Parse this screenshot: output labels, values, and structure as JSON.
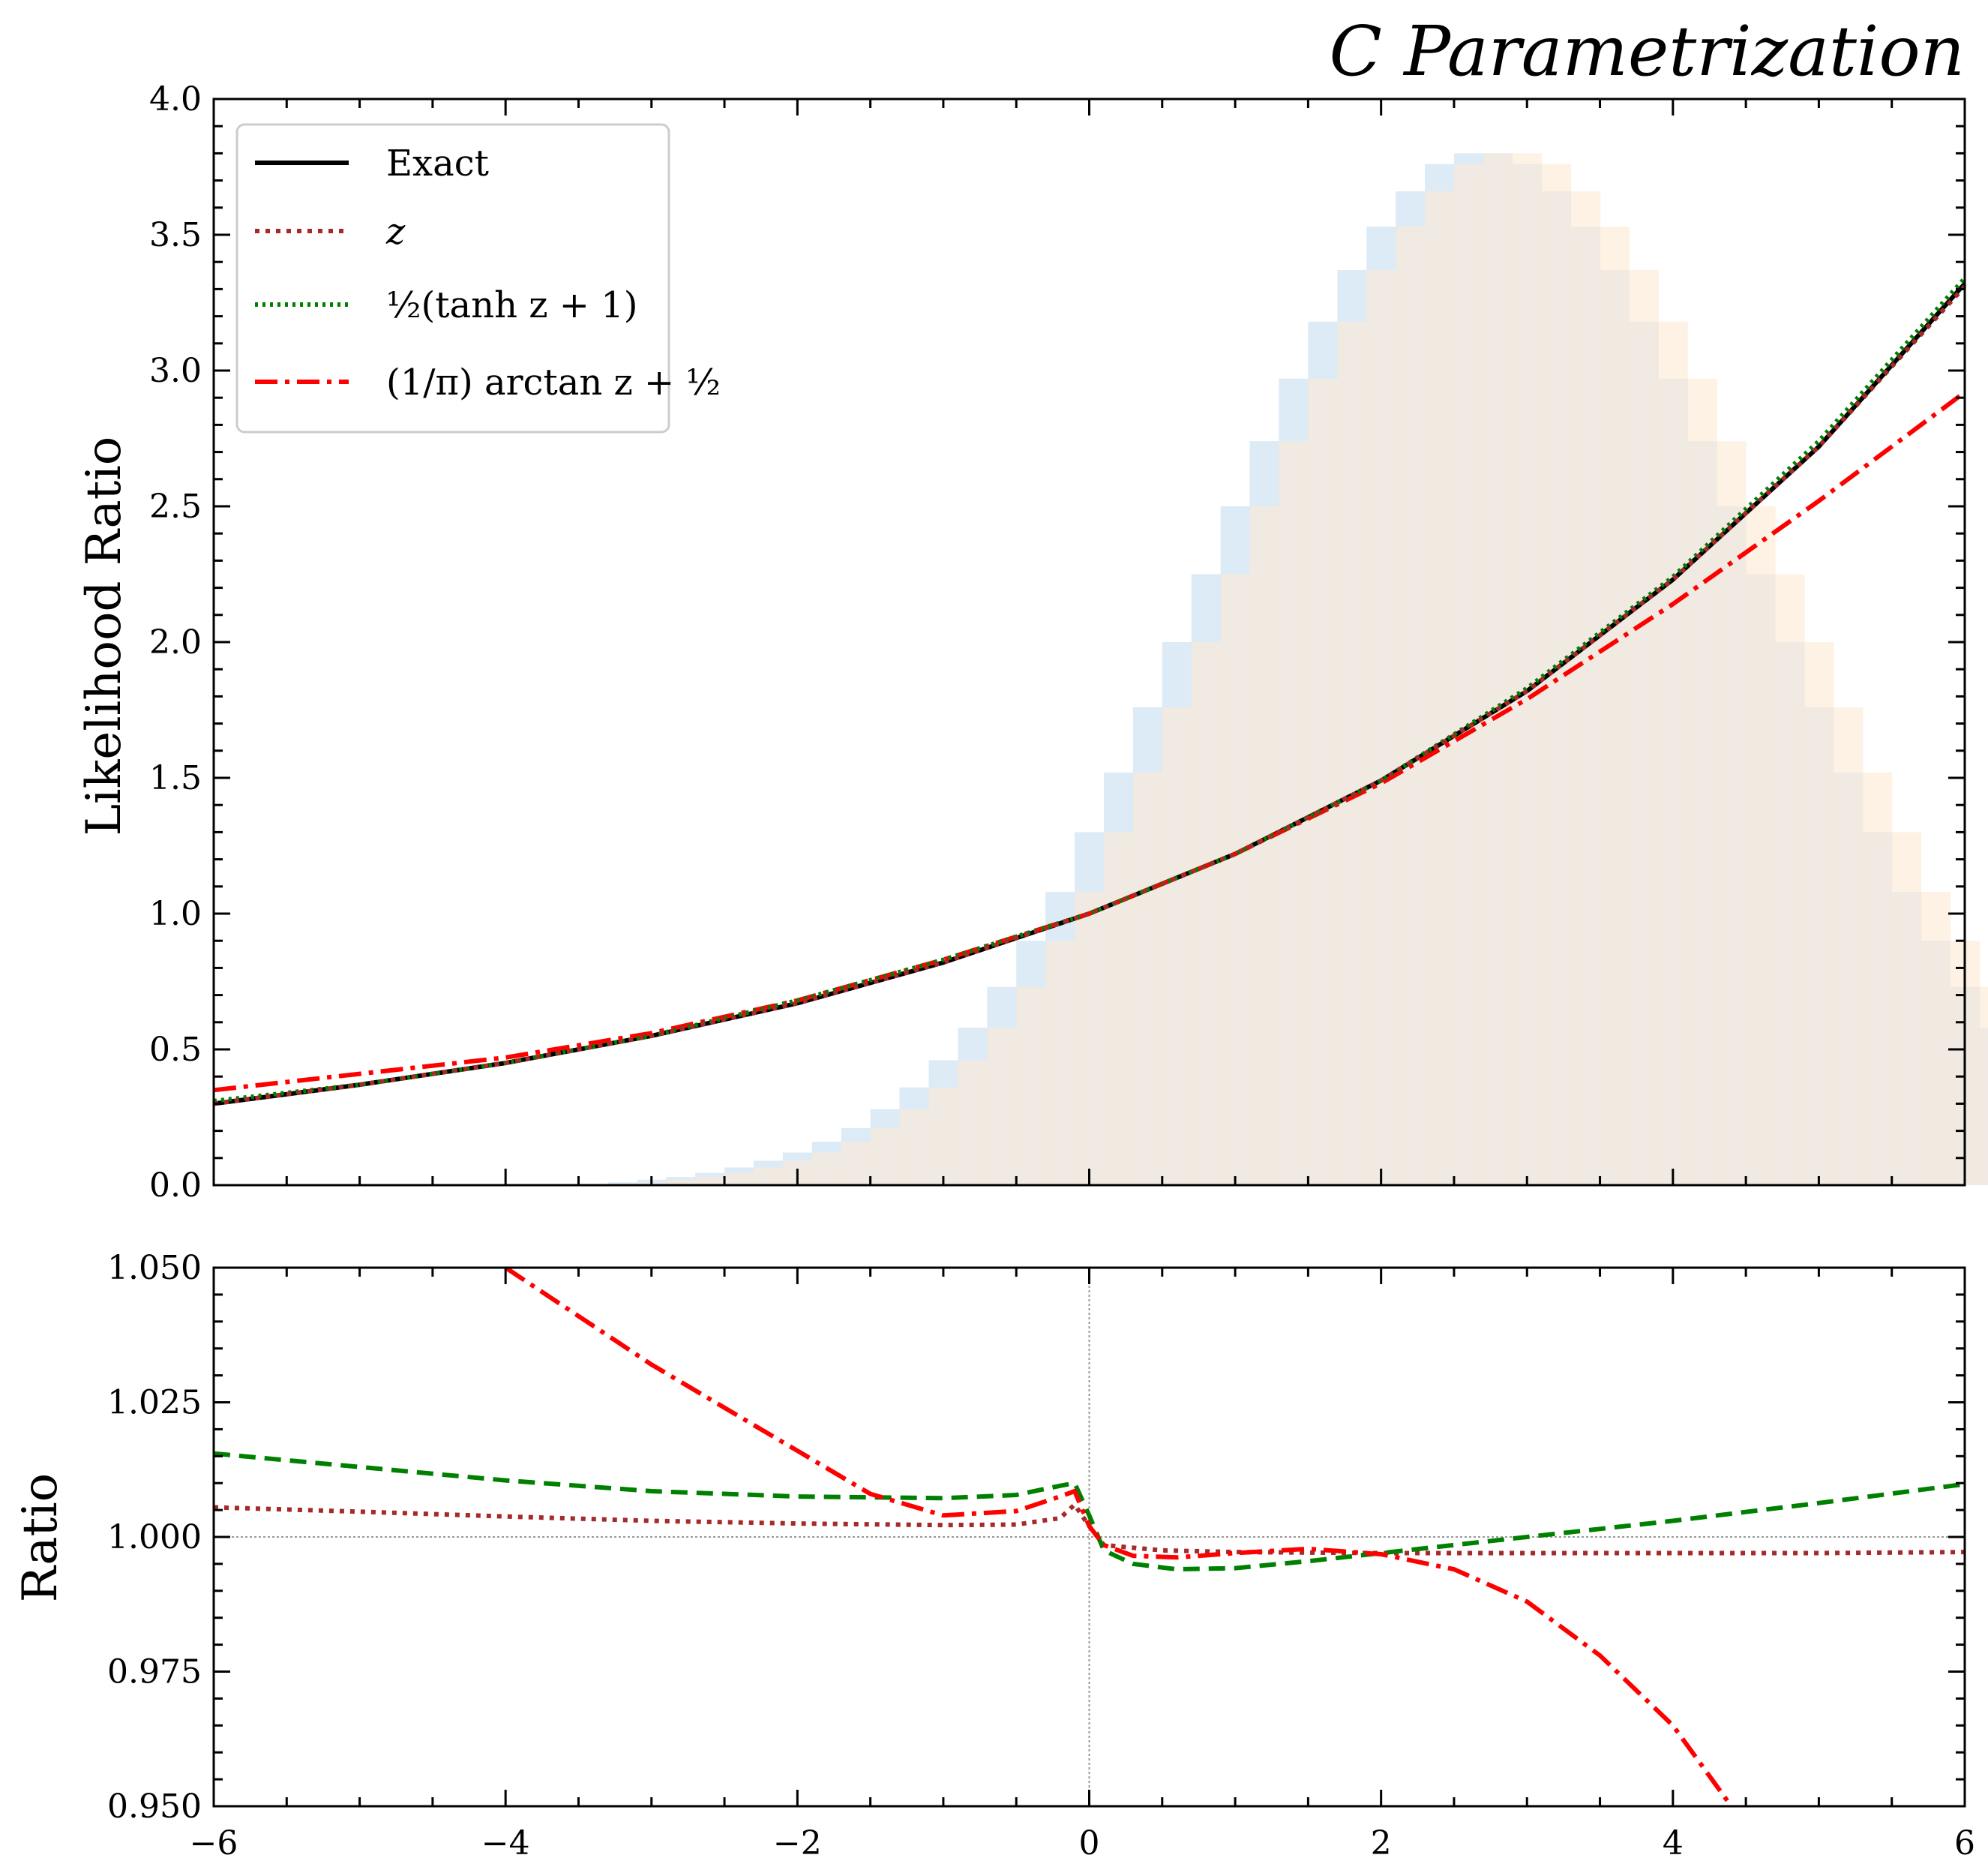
{
  "figure": {
    "title": "C Parametrization"
  },
  "chart_data": [
    {
      "type": "line",
      "panel": "top",
      "ylabel": "Likelihood Ratio",
      "xlabel": "",
      "xlim": [
        -6,
        6
      ],
      "ylim": [
        0,
        4
      ],
      "x_ticks": [
        -6,
        -4,
        -2,
        0,
        2,
        4,
        6
      ],
      "y_ticks": [
        0.0,
        0.5,
        1.0,
        1.5,
        2.0,
        2.5,
        3.0,
        3.5,
        4.0
      ],
      "y_tick_labels": [
        "0.0",
        "0.5",
        "1.0",
        "1.5",
        "2.0",
        "2.5",
        "3.0",
        "3.5",
        "4.0"
      ],
      "legend_position": "top-left",
      "legend": [
        {
          "label": "Exact",
          "color": "#000000",
          "style": "solid"
        },
        {
          "label": "z",
          "color": "#a52a2a",
          "style": "dotted"
        },
        {
          "label": "½(tanh z + 1)",
          "color": "#008000",
          "style": "dotted"
        },
        {
          "label": "(1/π) arctan z + ½",
          "color": "#ff0000",
          "style": "dashdot"
        }
      ],
      "series": [
        {
          "style_key": "exact",
          "x": [
            -6,
            -5,
            -4,
            -3,
            -2,
            -1,
            0,
            1,
            2,
            3,
            4,
            5,
            6
          ],
          "y": [
            0.3,
            0.37,
            0.45,
            0.55,
            0.67,
            0.82,
            1.0,
            1.22,
            1.49,
            1.82,
            2.23,
            2.72,
            3.32
          ]
        },
        {
          "style_key": "z",
          "x": [
            -6,
            -5,
            -4,
            -3,
            -2,
            -1,
            0,
            1,
            2,
            3,
            4,
            5,
            6
          ],
          "y": [
            0.3,
            0.37,
            0.45,
            0.55,
            0.67,
            0.82,
            1.0,
            1.22,
            1.49,
            1.82,
            2.23,
            2.72,
            3.31
          ]
        },
        {
          "style_key": "tanh",
          "x": [
            -6,
            -5,
            -4,
            -3,
            -2,
            -1,
            0,
            1,
            2,
            3,
            4,
            5,
            6
          ],
          "y": [
            0.31,
            0.37,
            0.45,
            0.55,
            0.68,
            0.83,
            1.0,
            1.22,
            1.49,
            1.83,
            2.24,
            2.74,
            3.34
          ]
        },
        {
          "style_key": "arctan",
          "x": [
            -6,
            -5,
            -4,
            -3,
            -2,
            -1,
            0,
            1,
            2,
            3,
            4,
            5,
            6
          ],
          "y": [
            0.35,
            0.41,
            0.47,
            0.56,
            0.68,
            0.83,
            1.0,
            1.22,
            1.48,
            1.79,
            2.14,
            2.52,
            2.92
          ]
        }
      ],
      "histograms": [
        {
          "color": "#cfe2f3",
          "bin_width": 0.2,
          "bin_start": -3.5,
          "values": [
            0.005,
            0.01,
            0.02,
            0.03,
            0.045,
            0.065,
            0.09,
            0.12,
            0.16,
            0.21,
            0.28,
            0.36,
            0.46,
            0.58,
            0.73,
            0.9,
            1.08,
            1.3,
            1.52,
            1.76,
            2.0,
            2.25,
            2.5,
            2.74,
            2.97,
            3.18,
            3.37,
            3.53,
            3.66,
            3.76,
            3.8,
            3.8,
            3.76,
            3.66,
            3.53,
            3.37,
            3.18,
            2.97,
            2.74,
            2.5,
            2.25,
            2.0,
            1.76,
            1.52,
            1.3,
            1.08,
            0.9,
            0.73,
            0.58,
            0.46,
            0.36,
            0.28,
            0.21,
            0.16,
            0.12,
            0.09,
            0.065,
            0.045,
            0.03,
            0.02,
            0.01,
            0.005
          ]
        },
        {
          "color": "#fde9d3",
          "bin_width": 0.2,
          "bin_start": -3.3,
          "values": [
            0.005,
            0.01,
            0.02,
            0.03,
            0.045,
            0.065,
            0.09,
            0.12,
            0.16,
            0.21,
            0.28,
            0.36,
            0.46,
            0.58,
            0.73,
            0.9,
            1.08,
            1.3,
            1.52,
            1.76,
            2.0,
            2.25,
            2.5,
            2.74,
            2.97,
            3.18,
            3.37,
            3.53,
            3.66,
            3.76,
            3.8,
            3.8,
            3.76,
            3.66,
            3.53,
            3.37,
            3.18,
            2.97,
            2.74,
            2.5,
            2.25,
            2.0,
            1.76,
            1.52,
            1.3,
            1.08,
            0.9,
            0.73,
            0.58,
            0.46,
            0.36,
            0.28,
            0.21,
            0.16,
            0.12,
            0.09,
            0.065,
            0.045,
            0.03,
            0.02,
            0.01,
            0.005
          ]
        }
      ]
    },
    {
      "type": "line",
      "panel": "bottom",
      "ylabel": "Ratio",
      "xlabel": "",
      "xlim": [
        -6,
        6
      ],
      "ylim": [
        0.95,
        1.05
      ],
      "x_ticks": [
        -6,
        -4,
        -2,
        0,
        2,
        4,
        6
      ],
      "x_tick_labels": [
        "−6",
        "−4",
        "−2",
        "0",
        "2",
        "4",
        "6"
      ],
      "y_ticks": [
        0.95,
        0.975,
        1.0,
        1.025,
        1.05
      ],
      "y_tick_labels": [
        "0.950",
        "0.975",
        "1.000",
        "1.025",
        "1.050"
      ],
      "reference_lines": {
        "y": 1.0,
        "x": 0
      },
      "series": [
        {
          "style_key": "z",
          "x": [
            -6,
            -5,
            -4,
            -3,
            -2,
            -1,
            -0.5,
            -0.2,
            -0.1,
            0,
            0.1,
            0.5,
            1,
            2,
            3,
            4,
            5,
            6
          ],
          "y": [
            1.0055,
            1.0047,
            1.0038,
            1.003,
            1.0025,
            1.0022,
            1.0023,
            1.0035,
            1.006,
            1.002,
            0.9985,
            0.9975,
            0.9972,
            0.997,
            0.997,
            0.997,
            0.997,
            0.9972
          ]
        },
        {
          "style_key": "tanh",
          "x": [
            -6,
            -5,
            -4,
            -3,
            -2,
            -1,
            -0.5,
            -0.2,
            -0.1,
            0,
            0.1,
            0.3,
            0.6,
            1,
            1.5,
            2,
            3,
            4,
            5,
            6
          ],
          "y": [
            1.0155,
            1.013,
            1.0105,
            1.0085,
            1.0075,
            1.0072,
            1.0078,
            1.0095,
            1.01,
            1.004,
            0.9975,
            0.995,
            0.994,
            0.9942,
            0.9955,
            0.997,
            1.0,
            1.003,
            1.0063,
            1.0098
          ]
        },
        {
          "style_key": "arctan",
          "x": [
            -4,
            -3.5,
            -3,
            -2.5,
            -2,
            -1.5,
            -1,
            -0.5,
            -0.2,
            -0.1,
            0,
            0.1,
            0.3,
            0.6,
            1,
            1.5,
            2,
            2.5,
            3,
            3.5,
            4,
            4.4
          ],
          "y": [
            1.05,
            1.041,
            1.032,
            1.024,
            1.016,
            1.008,
            1.004,
            1.0048,
            1.0075,
            1.0085,
            1.002,
            0.9985,
            0.9965,
            0.9962,
            0.997,
            0.9978,
            0.9968,
            0.994,
            0.988,
            0.978,
            0.965,
            0.95
          ]
        }
      ]
    }
  ],
  "styles": {
    "exact": {
      "color": "#000000",
      "dash": "",
      "width": 6
    },
    "z": {
      "color": "#a52a2a",
      "dash": "6,8",
      "width": 6
    },
    "tanh": {
      "color": "#008000",
      "dash": "4,6",
      "width": 6
    },
    "arctan": {
      "color": "#ff0000",
      "dash": "30,10,6,10",
      "width": 6
    },
    "bottom_tanh": {
      "color": "#008000",
      "dash": "22,12",
      "width": 6
    }
  }
}
